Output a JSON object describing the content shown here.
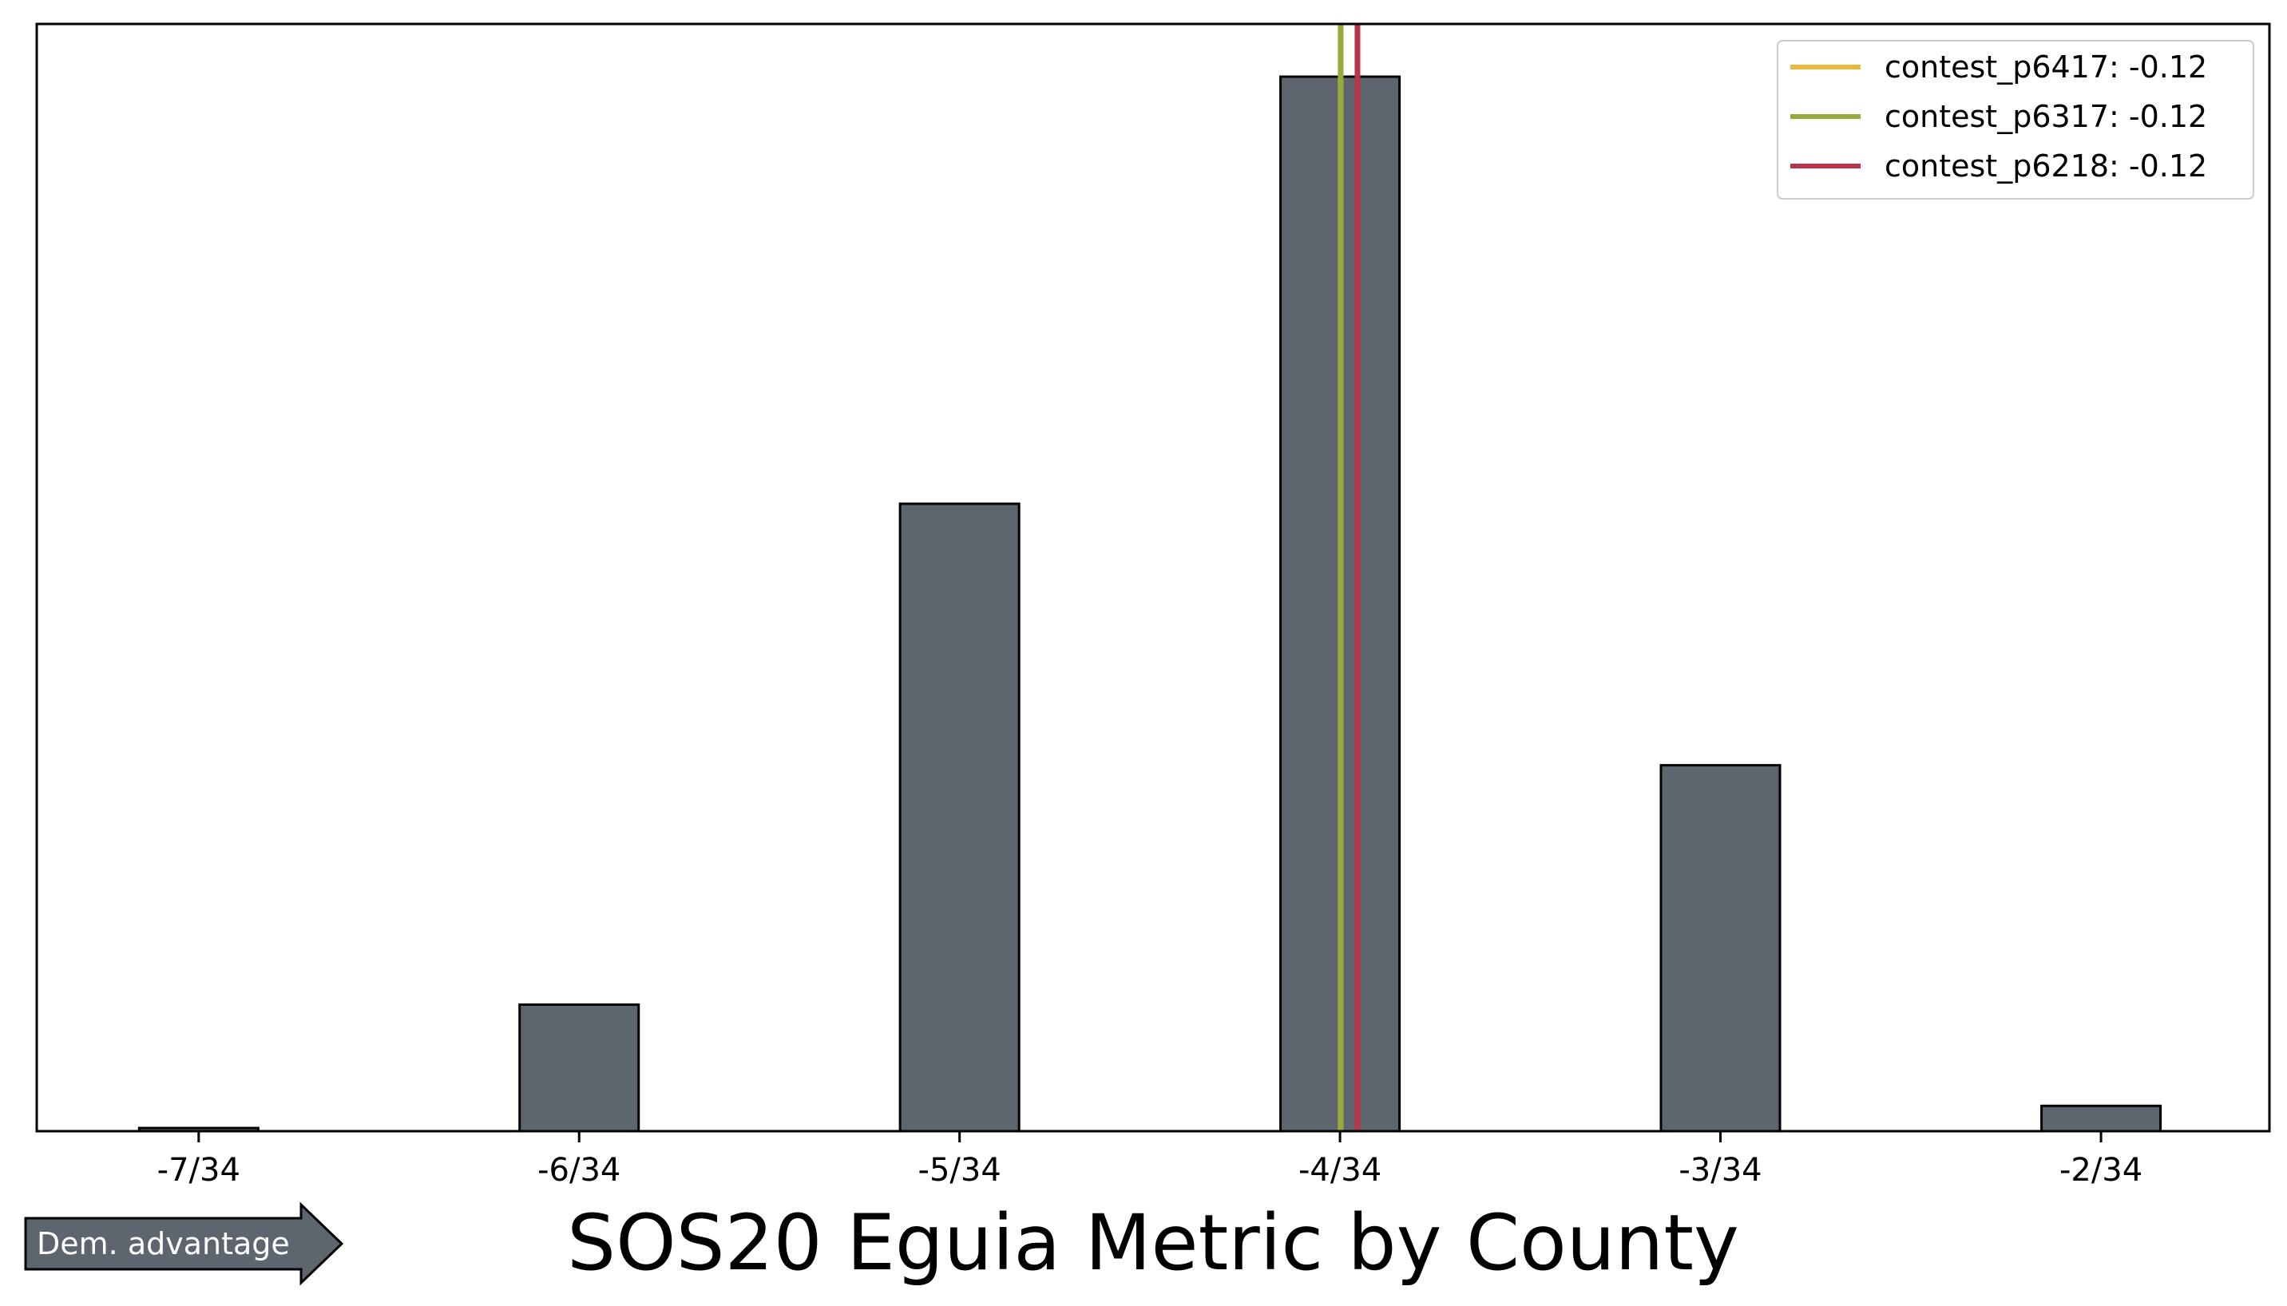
{
  "chart_data": {
    "type": "bar",
    "title": "SOS20 Eguia Metric by County",
    "xlabel": "",
    "ylabel": "",
    "x_ticks": [
      "-7/34",
      "-6/34",
      "-5/34",
      "-4/34",
      "-3/34",
      "-2/34"
    ],
    "x_tick_values": [
      -0.20588,
      -0.17647,
      -0.14706,
      -0.11765,
      -0.08824,
      -0.05882
    ],
    "xlim": [
      -0.2184,
      -0.0458
    ],
    "ylim": [
      0,
      1.05
    ],
    "bars": [
      {
        "x": -0.20588,
        "value": 0.003
      },
      {
        "x": -0.19118,
        "value": 0.0
      },
      {
        "x": -0.17647,
        "value": 0.12
      },
      {
        "x": -0.16176,
        "value": 0.0
      },
      {
        "x": -0.14706,
        "value": 0.595
      },
      {
        "x": -0.13235,
        "value": 0.0
      },
      {
        "x": -0.11765,
        "value": 1.0
      },
      {
        "x": -0.10294,
        "value": 0.0
      },
      {
        "x": -0.08824,
        "value": 0.347
      },
      {
        "x": -0.07353,
        "value": 0.0
      },
      {
        "x": -0.05882,
        "value": 0.024
      }
    ],
    "bar_width": 0.0092,
    "vlines": [
      {
        "name": "contest_p6417: -0.12",
        "x": -0.1176,
        "color": "#E8B93A"
      },
      {
        "name": "contest_p6317: -0.12",
        "x": -0.1176,
        "color": "#97AB3A"
      },
      {
        "name": "contest_p6218: -0.12",
        "x": -0.1163,
        "color": "#B8354A"
      }
    ],
    "legend": "top-right",
    "grid": false,
    "colors": {
      "bar_fill": "#5D666E",
      "bar_edge": "#000000",
      "arrow_fill": "#5D666E"
    }
  },
  "annotation": {
    "arrow_label": "Dem. advantage"
  }
}
